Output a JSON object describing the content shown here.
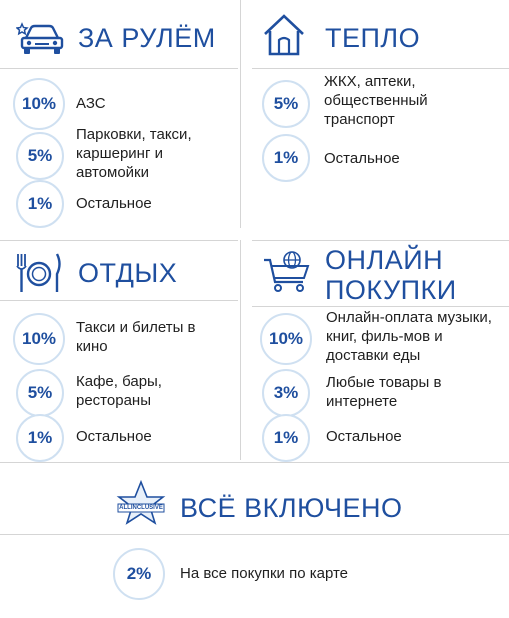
{
  "colors": {
    "accent": "#1f4f9f",
    "circle_border": "#cfe0f1",
    "divider": "#d5d5d5"
  },
  "car": {
    "icon": "car-icon",
    "title": "ЗА РУЛЁМ",
    "items": [
      {
        "pct": "10%",
        "text": "АЗС"
      },
      {
        "pct": "5%",
        "text": "Парковки, такси, каршеринг и автомойки"
      },
      {
        "pct": "1%",
        "text": "Остальное"
      }
    ]
  },
  "home": {
    "icon": "house-icon",
    "title": "ТЕПЛО",
    "items": [
      {
        "pct": "5%",
        "text": "ЖКХ, аптеки, общественный транспорт"
      },
      {
        "pct": "1%",
        "text": "Остальное"
      }
    ]
  },
  "rest": {
    "icon": "plate-cutlery-icon",
    "title": "ОТДЫХ",
    "items": [
      {
        "pct": "10%",
        "text": "Такси и билеты в кино"
      },
      {
        "pct": "5%",
        "text": "Кафе, бары, рестораны"
      },
      {
        "pct": "1%",
        "text": "Остальное"
      }
    ]
  },
  "online": {
    "icon": "shopping-cart-globe-icon",
    "title_line1": "ОНЛАЙН",
    "title_line2": "ПОКУПКИ",
    "items": [
      {
        "pct": "10%",
        "text": "Онлайн-оплата музыки, книг, филь-мов и доставки еды"
      },
      {
        "pct": "3%",
        "text": "Любые товары в интернете"
      },
      {
        "pct": "1%",
        "text": "Остальное"
      }
    ]
  },
  "all": {
    "icon": "star-badge-icon",
    "badge_text": "ALLINCLUSIVE",
    "title": "ВСЁ ВКЛЮЧЕНО",
    "items": [
      {
        "pct": "2%",
        "text": "На все покупки по карте"
      }
    ]
  }
}
